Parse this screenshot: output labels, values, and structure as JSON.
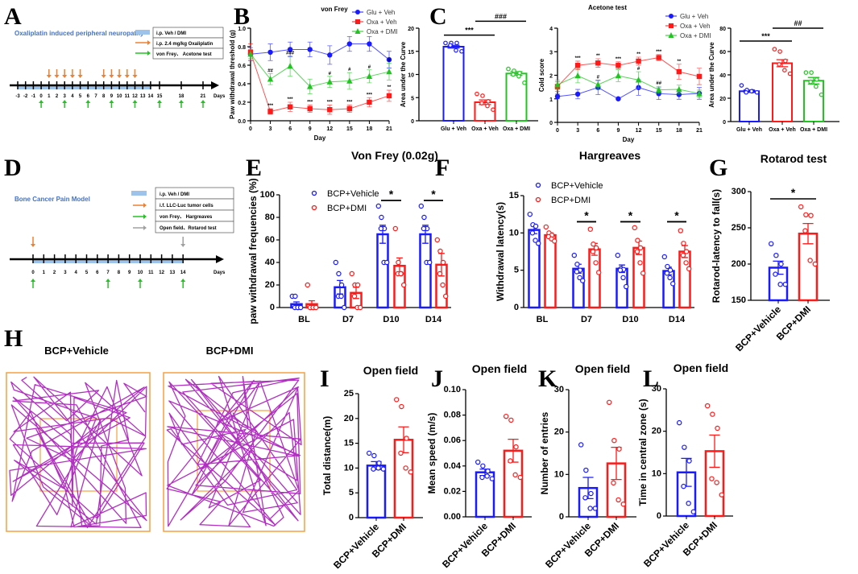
{
  "panel_labels": [
    "A",
    "B",
    "C",
    "D",
    "E",
    "F",
    "G",
    "H",
    "I",
    "J",
    "K",
    "L"
  ],
  "colors": {
    "blue": "#1a1aff",
    "red": "#ff1a1a",
    "green": "#22c422",
    "orange": "#f08030",
    "gray": "#a0a0a0",
    "shade": "#9ec3ea",
    "trace": "#b030c0",
    "arena": "#f5a040",
    "title_blue": "#4472c4"
  },
  "timeline_a": {
    "title": "Oxaliplatin induced peripheral neuropathy",
    "legend": [
      "i.p.  Veh / DMI",
      "i.p.  2.4 mg/kg Oxaliplatin",
      "von Frey、 Acetone test"
    ],
    "days": [
      "-3",
      "-2",
      "-1",
      "0",
      "1",
      "2",
      "3",
      "4",
      "5",
      "6",
      "7",
      "8",
      "9",
      "10",
      "11",
      "12",
      "13",
      "14",
      "15",
      "18",
      "21"
    ],
    "days_label": "Days",
    "oxaliplatin_days": [
      1,
      2,
      3,
      4,
      5,
      8,
      9,
      10,
      11,
      12
    ],
    "test_days": [
      0,
      3,
      6,
      9,
      12,
      15,
      18,
      21
    ],
    "treatment_range": [
      -3,
      14
    ]
  },
  "timeline_d": {
    "title": "Bone Cancer Pain Model",
    "legend": [
      "i.p.  Veh / DMI",
      "i.f. LLC-Luc tumor cells",
      "von Frey、 Hargreaves",
      "Open field、Rotarod test"
    ],
    "days": [
      "0",
      "1",
      "2",
      "3",
      "4",
      "5",
      "6",
      "7",
      "8",
      "9",
      "10",
      "11",
      "12",
      "13",
      "14"
    ],
    "days_label": "Days",
    "tumor_day": 0,
    "behavior_days": [
      0,
      7,
      10,
      14
    ],
    "open_field_day": 14,
    "treatment_range": [
      0,
      14
    ]
  },
  "open_field_traces": {
    "labels": [
      "BCP+Vehicle",
      "BCP+DMI"
    ]
  },
  "chart_data": [
    {
      "type": "line",
      "title": "von Frey",
      "xlabel": "Day",
      "ylabel": "Paw withdrawal threshold (g)",
      "x": [
        0,
        3,
        6,
        9,
        12,
        15,
        18,
        21
      ],
      "xlim": [
        0,
        21
      ],
      "ylim": [
        0,
        1.0
      ],
      "yticks": [
        "0.0",
        "0.2",
        "0.4",
        "0.6",
        "0.8",
        "1.0"
      ],
      "xticks": [
        "0",
        "3",
        "6",
        "9",
        "12",
        "15",
        "18",
        "21"
      ],
      "legend": "top-right",
      "series": [
        {
          "name": "Glu + Veh",
          "color": "#1a1aff",
          "marker": "circle",
          "values": [
            0.72,
            0.74,
            0.77,
            0.77,
            0.71,
            0.83,
            0.83,
            0.66
          ],
          "sem": [
            0.07,
            0.09,
            0.08,
            0.08,
            0.1,
            0.08,
            0.08,
            0.09
          ],
          "annotations": [
            "",
            "",
            "",
            "",
            "",
            "",
            "",
            ""
          ]
        },
        {
          "name": "Oxa + Veh",
          "color": "#ff1a1a",
          "marker": "square",
          "values": [
            0.74,
            0.1,
            0.15,
            0.13,
            0.12,
            0.13,
            0.2,
            0.27
          ],
          "sem": [
            0.09,
            0.03,
            0.05,
            0.04,
            0.05,
            0.04,
            0.05,
            0.06
          ],
          "annotations": [
            "",
            "***",
            "***",
            "***",
            "***",
            "***",
            "***",
            "**"
          ]
        },
        {
          "name": "Oxa + DMI",
          "color": "#22c422",
          "marker": "triangle",
          "values": [
            0.72,
            0.45,
            0.59,
            0.37,
            0.42,
            0.43,
            0.48,
            0.53
          ],
          "sem": [
            0.05,
            0.06,
            0.11,
            0.08,
            0.06,
            0.09,
            0.07,
            0.09
          ],
          "annotations": [
            "",
            "##",
            "###",
            "",
            "#",
            "#",
            "#",
            "#"
          ]
        }
      ]
    },
    {
      "type": "bar",
      "ylabel": "Area under the Curve",
      "ylim": [
        0,
        20
      ],
      "yticks": [
        "0",
        "5",
        "10",
        "15",
        "20"
      ],
      "groups": [
        {
          "label": "Glu + Veh",
          "color": "#1a1aff",
          "value": 16.0,
          "sem": 0.3,
          "points": [
            16.8,
            16.8,
            16.8,
            16.3,
            15.2,
            15.0
          ]
        },
        {
          "label": "Oxa + Veh",
          "color": "#ff1a1a",
          "value": 4.0,
          "sem": 0.5,
          "points": [
            5.8,
            5.4,
            4.2,
            3.8,
            3.2,
            2.4
          ]
        },
        {
          "label": "Oxa + DMI",
          "color": "#22c422",
          "value": 10.2,
          "sem": 0.4,
          "points": [
            11.2,
            10.8,
            10.3,
            10.0,
            9.6,
            8.2
          ]
        }
      ],
      "significance": [
        {
          "from": 0,
          "to": 1,
          "label": "***",
          "level": 18.5
        },
        {
          "from": 1,
          "to": 2,
          "label": "###",
          "level": 21.5
        }
      ]
    },
    {
      "type": "line",
      "title": "Acetone test",
      "xlabel": "Day",
      "ylabel": "Cold score",
      "x": [
        0,
        3,
        6,
        9,
        12,
        15,
        18,
        21
      ],
      "xlim": [
        0,
        21
      ],
      "ylim": [
        0,
        4
      ],
      "yticks": [
        "0",
        "1",
        "2",
        "3",
        "4"
      ],
      "xticks": [
        "0",
        "3",
        "6",
        "9",
        "12",
        "15",
        "18",
        "21"
      ],
      "legend": "top-right",
      "series": [
        {
          "name": "Glu + Veh",
          "color": "#1a1aff",
          "marker": "circle",
          "values": [
            1.1,
            1.2,
            1.48,
            1.0,
            1.48,
            1.22,
            1.18,
            1.23
          ],
          "sem": [
            0.1,
            0.2,
            0.3,
            0.03,
            0.33,
            0.25,
            0.2,
            0.25
          ],
          "annotations": [
            "",
            "",
            "",
            "",
            "",
            "",
            "",
            ""
          ]
        },
        {
          "name": "Oxa + Veh",
          "color": "#ff1a1a",
          "marker": "square",
          "values": [
            1.52,
            2.42,
            2.52,
            2.42,
            2.6,
            2.75,
            2.15,
            1.95
          ],
          "sem": [
            0.2,
            0.18,
            0.18,
            0.15,
            0.17,
            0.13,
            0.32,
            0.35
          ],
          "annotations": [
            "",
            "***",
            "**",
            "***",
            "**",
            "***",
            "**",
            ""
          ]
        },
        {
          "name": "Oxa + DMI",
          "color": "#22c422",
          "marker": "triangle",
          "values": [
            1.6,
            1.98,
            1.6,
            1.98,
            1.8,
            1.38,
            1.4,
            1.22
          ],
          "sem": [
            0.2,
            0.3,
            0.2,
            0.25,
            0.35,
            0.15,
            0.18,
            0.15
          ],
          "annotations": [
            "",
            "",
            "#",
            "",
            "#",
            "##",
            "",
            ""
          ]
        }
      ]
    },
    {
      "type": "bar",
      "ylabel": "Area under the Curve",
      "ylim": [
        0,
        80
      ],
      "yticks": [
        "0",
        "20",
        "40",
        "60",
        "80"
      ],
      "groups": [
        {
          "label": "Glu + Veh",
          "color": "#1a1aff",
          "value": 26,
          "sem": 1.0,
          "points": [
            31,
            27,
            26,
            25,
            26,
            25
          ]
        },
        {
          "label": "Oxa + Veh",
          "color": "#ff1a1a",
          "value": 50,
          "sem": 3.0,
          "points": [
            62,
            60,
            52,
            49,
            44,
            41
          ]
        },
        {
          "label": "Oxa + DMI",
          "color": "#22c422",
          "value": 35,
          "sem": 2.8,
          "points": [
            42,
            42,
            36,
            34,
            30,
            23
          ]
        }
      ],
      "significance": [
        {
          "from": 0,
          "to": 1,
          "label": "***",
          "level": 69
        },
        {
          "from": 1,
          "to": 2,
          "label": "##",
          "level": 80
        }
      ]
    },
    {
      "type": "bar",
      "title": "Von Frey (0.02g)",
      "ylabel": "paw withdrawal frequencies (%)",
      "ylim": [
        0,
        100
      ],
      "yticks": [
        "0",
        "20",
        "40",
        "60",
        "80",
        "100"
      ],
      "categories": [
        "BL",
        "D7",
        "D10",
        "D14"
      ],
      "legend": "top-left",
      "series": [
        {
          "name": "BCP+Vehicle",
          "color": "#1a1aff",
          "values": [
            3,
            18,
            65,
            65
          ],
          "sem": [
            2,
            6,
            8,
            8
          ],
          "points": [
            [
              10,
              10,
              0,
              0,
              0,
              0
            ],
            [
              40,
              30,
              20,
              10,
              10,
              0
            ],
            [
              90,
              80,
              70,
              70,
              40,
              40
            ],
            [
              90,
              80,
              70,
              70,
              40,
              40
            ]
          ]
        },
        {
          "name": "BCP+DMI",
          "color": "#ff1a1a",
          "values": [
            3,
            13,
            37,
            38
          ],
          "sem": [
            3,
            5,
            7,
            10
          ],
          "points": [
            [
              20,
              0,
              0,
              0,
              0,
              0
            ],
            [
              30,
              20,
              20,
              10,
              0,
              0
            ],
            [
              70,
              40,
              30,
              30,
              30,
              20
            ],
            [
              60,
              50,
              40,
              30,
              20,
              10
            ]
          ]
        }
      ],
      "significance": [
        {
          "category": 2,
          "label": "*",
          "level": 95
        },
        {
          "category": 3,
          "label": "*",
          "level": 95
        }
      ]
    },
    {
      "type": "bar",
      "title": "Hargreaves",
      "ylabel": "Withdrawal latency(s)",
      "ylim": [
        0,
        15
      ],
      "yticks": [
        "0",
        "5",
        "10",
        "15"
      ],
      "categories": [
        "BL",
        "D7",
        "D10",
        "D14"
      ],
      "legend": "top-left",
      "series": [
        {
          "name": "BCP+Vehicle",
          "color": "#1a1aff",
          "values": [
            10.4,
            5.2,
            5.2,
            4.9
          ],
          "sem": [
            0.5,
            0.6,
            0.5,
            0.5
          ],
          "points": [
            [
              12.5,
              11.1,
              10.9,
              10.0,
              9.0,
              8.6
            ],
            [
              7.0,
              5.8,
              5.0,
              4.8,
              4.0,
              3.6
            ],
            [
              7.0,
              5.2,
              5.1,
              5.0,
              4.0,
              2.8
            ],
            [
              6.8,
              5.5,
              5.0,
              4.6,
              4.0,
              3.2
            ]
          ]
        },
        {
          "name": "BCP+DMI",
          "color": "#ff1a1a",
          "values": [
            9.7,
            7.8,
            8.0,
            7.5
          ],
          "sem": [
            0.3,
            0.8,
            0.9,
            0.8
          ],
          "points": [
            [
              10.8,
              10.0,
              9.7,
              9.5,
              9.2,
              8.9
            ],
            [
              10.5,
              8.5,
              8.0,
              7.5,
              6.0,
              4.7
            ],
            [
              10.7,
              9.0,
              8.0,
              7.5,
              6.0,
              4.6
            ],
            [
              10.3,
              8.6,
              7.5,
              7.0,
              6.0,
              5.2
            ]
          ]
        }
      ],
      "significance": [
        {
          "category": 1,
          "label": "*",
          "level": 11.5
        },
        {
          "category": 2,
          "label": "*",
          "level": 11.5
        },
        {
          "category": 3,
          "label": "*",
          "level": 11.5
        }
      ]
    },
    {
      "type": "bar",
      "title": "Rotarod test",
      "ylabel": "Rotarod-latency to fall(s)",
      "ylim": [
        150,
        300
      ],
      "yticks": [
        "150",
        "200",
        "250",
        "300"
      ],
      "groups": [
        {
          "label": "BCP+Vehicle",
          "color": "#1a1aff",
          "value": 195,
          "sem": 9,
          "points": [
            228,
            212,
            200,
            186,
            172,
            172
          ]
        },
        {
          "label": "BCP+DMI",
          "color": "#ff1a1a",
          "value": 242,
          "sem": 14,
          "points": [
            279,
            268,
            267,
            246,
            205,
            200
          ]
        }
      ],
      "significance": [
        {
          "from": 0,
          "to": 1,
          "label": "*",
          "level": 290
        }
      ]
    },
    {
      "type": "bar",
      "title": "Open field",
      "ylabel": "Total distance(m)",
      "ylim": [
        0,
        25
      ],
      "yticks": [
        "0",
        "5",
        "10",
        "15",
        "20",
        "25"
      ],
      "groups": [
        {
          "label": "BCP+Vehicle",
          "color": "#1a1aff",
          "value": 10.5,
          "sem": 0.8,
          "points": [
            13.0,
            12.5,
            11.0,
            9.8,
            10.0,
            9.8
          ]
        },
        {
          "label": "BCP+DMI",
          "color": "#ff1a1a",
          "value": 15.7,
          "sem": 2.6,
          "points": [
            23.8,
            22.4,
            16.0,
            13.0,
            10.0,
            9.2
          ]
        }
      ]
    },
    {
      "type": "bar",
      "title": "Open field",
      "ylabel": "Mean speed (m/s)",
      "ylim": [
        0,
        0.1
      ],
      "yticks": [
        "0.00",
        "0.02",
        "0.04",
        "0.06",
        "0.08",
        "0.10"
      ],
      "groups": [
        {
          "label": "BCP+Vehicle",
          "color": "#1a1aff",
          "value": 0.035,
          "sem": 0.0025,
          "points": [
            0.043,
            0.04,
            0.036,
            0.031,
            0.032,
            0.03
          ]
        },
        {
          "label": "BCP+DMI",
          "color": "#ff1a1a",
          "value": 0.052,
          "sem": 0.009,
          "points": [
            0.079,
            0.076,
            0.055,
            0.044,
            0.033,
            0.031
          ]
        }
      ]
    },
    {
      "type": "bar",
      "title": "Open field",
      "ylabel": "Number of entries",
      "ylim": [
        0,
        30
      ],
      "yticks": [
        "0",
        "10",
        "20",
        "30"
      ],
      "groups": [
        {
          "label": "BCP+Vehicle",
          "color": "#1a1aff",
          "value": 6.8,
          "sem": 2.5,
          "points": [
            17,
            11,
            5.5,
            4.5,
            2,
            2
          ]
        },
        {
          "label": "BCP+DMI",
          "color": "#ff1a1a",
          "value": 12.6,
          "sem": 3.8,
          "points": [
            27,
            18,
            16,
            8,
            4,
            3
          ]
        }
      ]
    },
    {
      "type": "bar",
      "title": "Open field",
      "ylabel": "Time in central zone (s)",
      "ylim": [
        0,
        30
      ],
      "yticks": [
        "0",
        "10",
        "20",
        "30"
      ],
      "groups": [
        {
          "label": "BCP+Vehicle",
          "color": "#1a1aff",
          "value": 10.3,
          "sem": 3.3,
          "points": [
            22,
            16.2,
            13,
            7,
            3,
            1
          ]
        },
        {
          "label": "BCP+DMI",
          "color": "#ff1a1a",
          "value": 15.3,
          "sem": 3.8,
          "points": [
            26,
            24,
            20.7,
            8.8,
            7.9,
            5
          ]
        }
      ]
    }
  ]
}
